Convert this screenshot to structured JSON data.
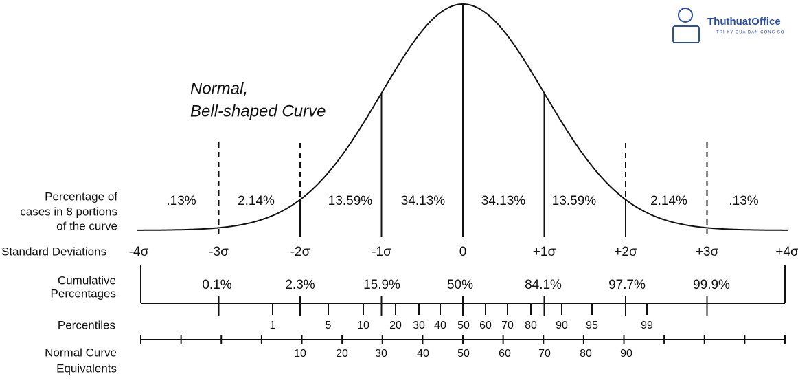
{
  "annotation": [
    "Normal,",
    "Bell-shaped Curve"
  ],
  "logo": {
    "name": "ThuthuatOffice",
    "tagline": "TRI KY CUA DAN CONG SO"
  },
  "rows": {
    "portions": {
      "label": [
        "Percentage of",
        "cases in 8 portions",
        "of the curve"
      ],
      "values": [
        ".13%",
        "2.14%",
        "13.59%",
        "34.13%",
        "34.13%",
        "13.59%",
        "2.14%",
        ".13%"
      ]
    },
    "std_devs": {
      "label": [
        "Standard Deviations"
      ],
      "values": [
        "-4σ",
        "-3σ",
        "-2σ",
        "-1σ",
        "0",
        "+1σ",
        "+2σ",
        "+3σ",
        "+4σ"
      ]
    },
    "cumulative": {
      "label": [
        "Cumulative",
        "Percentages"
      ],
      "values": [
        "0.1%",
        "2.3%",
        "15.9%",
        "50%",
        "84.1%",
        "97.7%",
        "99.9%"
      ]
    },
    "percentiles": {
      "label": [
        "Percentiles"
      ],
      "values": [
        "1",
        "5",
        "10",
        "20",
        "30",
        "40",
        "50",
        "60",
        "70",
        "80",
        "90",
        "95",
        "99"
      ]
    },
    "nce": {
      "label": [
        "Normal Curve",
        "Equivalents"
      ],
      "values": [
        "10",
        "20",
        "30",
        "40",
        "50",
        "60",
        "70",
        "80",
        "90"
      ]
    }
  }
}
